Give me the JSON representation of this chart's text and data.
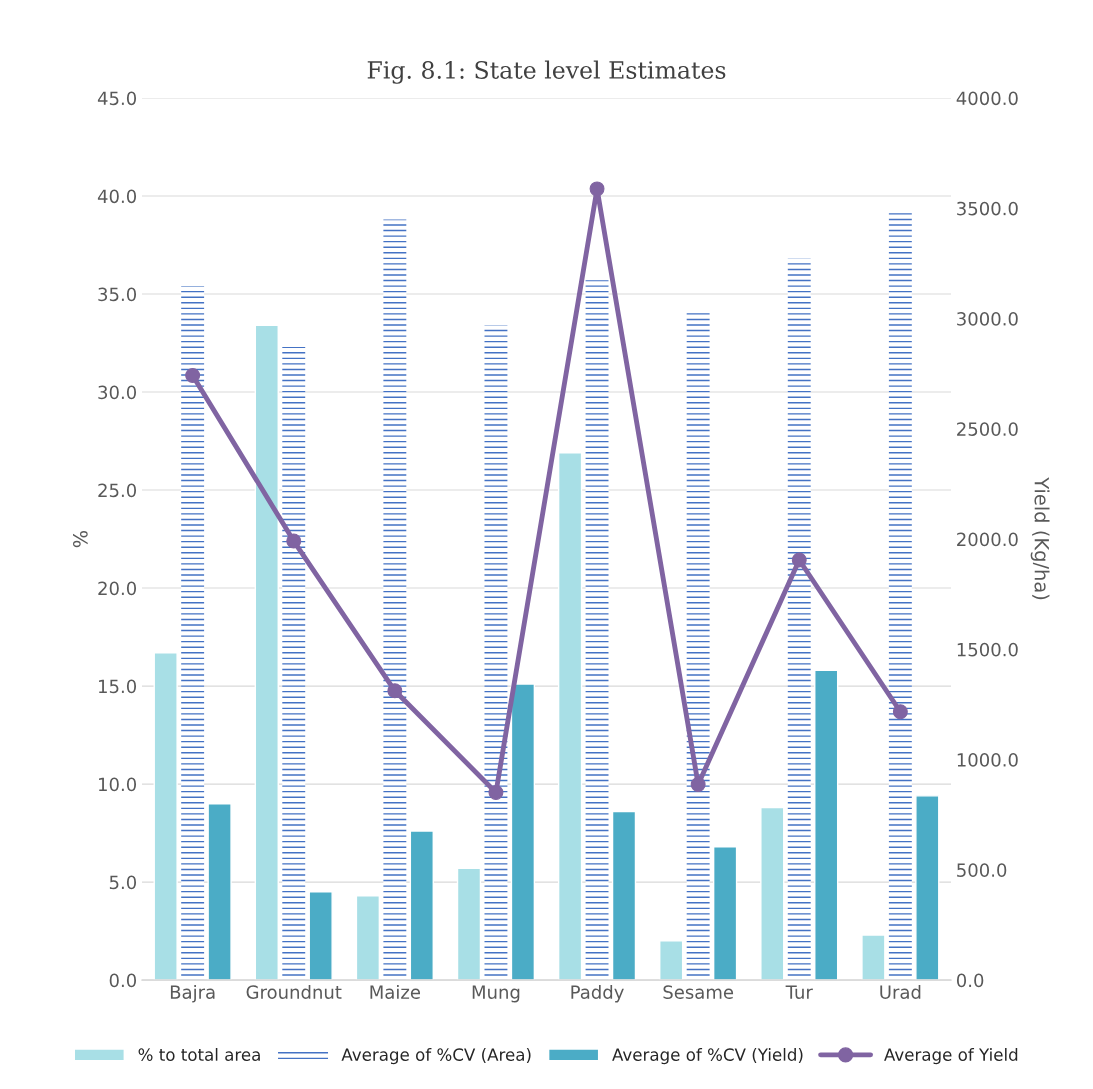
{
  "chart_data": {
    "type": "bar",
    "title": "Fig. 8.1: State level Estimates",
    "ylabel": "%",
    "y2label": "Yield (Kg/ha)",
    "categories": [
      "Bajra",
      "Groundnut",
      "Maize",
      "Mung",
      "Paddy",
      "Sesame",
      "Tur",
      "Urad"
    ],
    "series": [
      {
        "name": "% to total area",
        "color": "#a8dfe6",
        "values": [
          16.7,
          33.4,
          4.3,
          5.7,
          26.9,
          2.0,
          8.8,
          2.3
        ]
      },
      {
        "name": "Average of %CV (Area)",
        "color": "#4472c4",
        "values": [
          35.4,
          32.3,
          38.8,
          33.4,
          35.7,
          34.2,
          36.8,
          39.3
        ]
      },
      {
        "name": "Average of %CV (Yield)",
        "color": "#4bacc6",
        "values": [
          9.0,
          4.5,
          7.6,
          15.1,
          8.6,
          6.8,
          15.8,
          9.4
        ]
      },
      {
        "name": "Average of Yield",
        "type": "line",
        "axis": "y2",
        "color": "#8064a2",
        "marker": "circle",
        "values": [
          2742,
          1991,
          1312,
          851,
          3588,
          887,
          1905,
          1217
        ]
      }
    ],
    "ylim": [
      0,
      45
    ],
    "yticks": [
      {
        "value": 0,
        "label": "0.0"
      },
      {
        "value": 5,
        "label": "5.0"
      },
      {
        "value": 10,
        "label": "10.0"
      },
      {
        "value": 15,
        "label": "15.0"
      },
      {
        "value": 20,
        "label": "20.0"
      },
      {
        "value": 25,
        "label": "25.0"
      },
      {
        "value": 30,
        "label": "30.0"
      },
      {
        "value": 35,
        "label": "35.0"
      },
      {
        "value": 40,
        "label": "40.0"
      },
      {
        "value": 45,
        "label": "45.0"
      }
    ],
    "y2lim": [
      0,
      4000
    ],
    "y2ticks": [
      {
        "value": 0,
        "label": "0.0"
      },
      {
        "value": 500,
        "label": "500.0"
      },
      {
        "value": 1000,
        "label": "1000.0"
      },
      {
        "value": 1500,
        "label": "1500.0"
      },
      {
        "value": 2000,
        "label": "2000.0"
      },
      {
        "value": 2500,
        "label": "2500.0"
      },
      {
        "value": 3000,
        "label": "3000.0"
      },
      {
        "value": 3500,
        "label": "3500.0"
      },
      {
        "value": 4000,
        "label": "4000.0"
      }
    ],
    "grid": "y",
    "legend": "bottom"
  }
}
